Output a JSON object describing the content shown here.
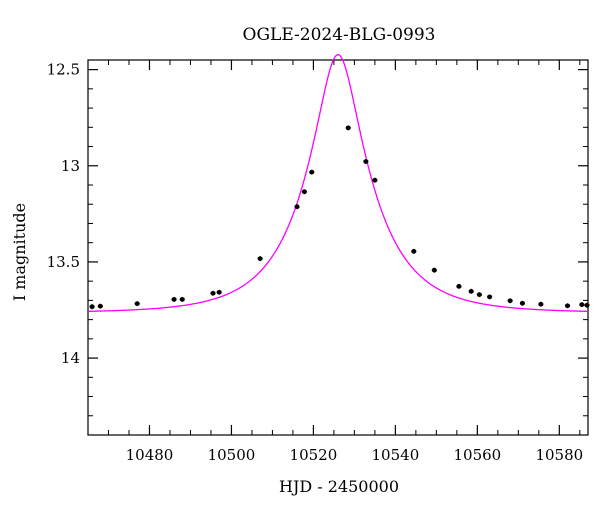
{
  "chart_data": {
    "type": "scatter",
    "title": "OGLE-2024-BLG-0993",
    "xlabel": "HJD - 2450000",
    "ylabel": "I magnitude",
    "xlim": [
      10465,
      10587
    ],
    "ylim": [
      14.4,
      12.45
    ],
    "y_inverted": true,
    "x_ticks": [
      10480,
      10500,
      10520,
      10540,
      10560,
      10580
    ],
    "y_ticks": [
      12.5,
      13,
      13.5,
      14
    ],
    "y_tick_labels": [
      "12.5",
      "13",
      "13.5",
      "14"
    ],
    "grid": false,
    "model": {
      "type": "microlensing-fit",
      "t0": 10526,
      "u0": 0.3,
      "tE": 16,
      "baseline_mag": 13.765,
      "color": "#ff00ff"
    },
    "points": [
      {
        "x": 10466.0,
        "y": 13.733
      },
      {
        "x": 10468.0,
        "y": 13.73
      },
      {
        "x": 10477.0,
        "y": 13.717
      },
      {
        "x": 10486.0,
        "y": 13.695
      },
      {
        "x": 10488.0,
        "y": 13.695
      },
      {
        "x": 10495.5,
        "y": 13.663
      },
      {
        "x": 10497.0,
        "y": 13.658
      },
      {
        "x": 10507.0,
        "y": 13.483
      },
      {
        "x": 10516.0,
        "y": 13.213
      },
      {
        "x": 10517.8,
        "y": 13.135
      },
      {
        "x": 10519.6,
        "y": 13.033
      },
      {
        "x": 10528.5,
        "y": 12.803
      },
      {
        "x": 10532.8,
        "y": 12.978
      },
      {
        "x": 10535.0,
        "y": 13.075
      },
      {
        "x": 10544.5,
        "y": 13.445
      },
      {
        "x": 10549.5,
        "y": 13.543
      },
      {
        "x": 10555.5,
        "y": 13.627
      },
      {
        "x": 10558.5,
        "y": 13.653
      },
      {
        "x": 10560.5,
        "y": 13.67
      },
      {
        "x": 10563.0,
        "y": 13.682
      },
      {
        "x": 10568.0,
        "y": 13.702
      },
      {
        "x": 10571.0,
        "y": 13.715
      },
      {
        "x": 10575.5,
        "y": 13.72
      },
      {
        "x": 10582.0,
        "y": 13.728
      },
      {
        "x": 10585.5,
        "y": 13.722
      },
      {
        "x": 10587.0,
        "y": 13.725
      }
    ],
    "point_color": "#000000"
  }
}
